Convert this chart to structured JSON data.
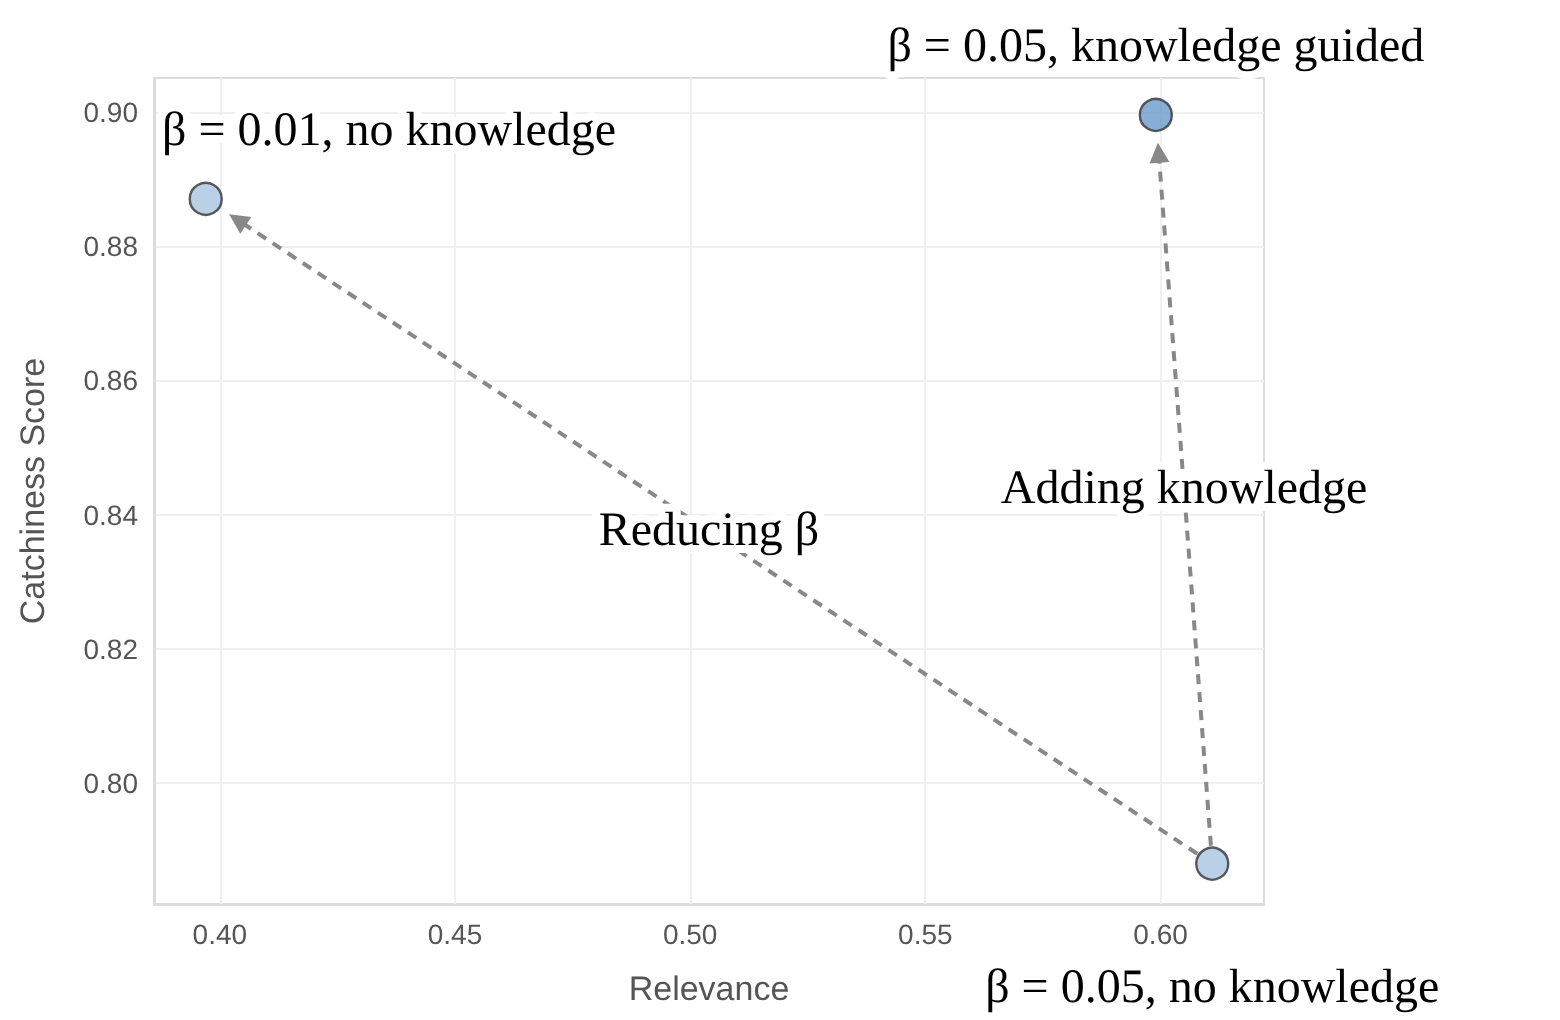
{
  "chart_data": {
    "type": "scatter",
    "xlabel": "Relevance",
    "ylabel": "Catchiness Score",
    "x": [
      0.397,
      0.599,
      0.611
    ],
    "values": [
      0.887,
      0.8995,
      0.788
    ],
    "colors": [
      "#a8c4e0",
      "#6a9acb",
      "#a8c4e0"
    ],
    "xlim": [
      0.386,
      0.622
    ],
    "ylim": [
      0.782,
      0.905
    ],
    "xticks": [
      {
        "value": 0.4,
        "label": "0.40"
      },
      {
        "value": 0.45,
        "label": "0.45"
      },
      {
        "value": 0.5,
        "label": "0.50"
      },
      {
        "value": 0.55,
        "label": "0.55"
      },
      {
        "value": 0.6,
        "label": "0.60"
      }
    ],
    "yticks": [
      {
        "value": 0.8,
        "label": "0.80"
      },
      {
        "value": 0.82,
        "label": "0.82"
      },
      {
        "value": 0.84,
        "label": "0.84"
      },
      {
        "value": 0.86,
        "label": "0.86"
      },
      {
        "value": 0.88,
        "label": "0.88"
      },
      {
        "value": 0.9,
        "label": "0.90"
      }
    ],
    "grid": true,
    "marker": "circle",
    "annotations": [
      {
        "text": "β = 0.01, no knowledge",
        "x": 0.397,
        "y": 0.887
      },
      {
        "text": "β = 0.05, knowledge guided",
        "x": 0.599,
        "y": 0.8995
      },
      {
        "text": "β = 0.05, no knowledge",
        "x": 0.611,
        "y": 0.788
      },
      "Reducing β",
      "Adding knowledge"
    ]
  }
}
